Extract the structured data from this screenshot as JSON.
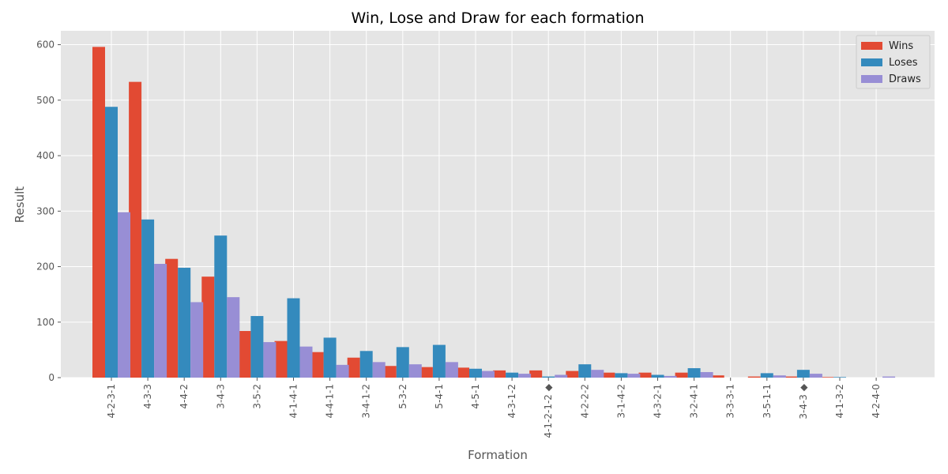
{
  "chart_data": {
    "type": "bar",
    "title": "Win, Lose and Draw for each formation",
    "xlabel": "Formation",
    "ylabel": "Result",
    "categories": [
      "4-2-3-1",
      "4-3-3",
      "4-4-2",
      "3-4-3",
      "3-5-2",
      "4-1-4-1",
      "4-4-1-1",
      "3-4-1-2",
      "5-3-2",
      "5-4-1",
      "4-5-1",
      "4-3-1-2",
      "4-1-2-1-2 ◆",
      "4-2-2-2",
      "3-1-4-2",
      "4-3-2-1",
      "3-2-4-1",
      "3-3-3-1",
      "3-5-1-1",
      "3-4-3 ◆",
      "4-1-3-2",
      "4-2-4-0"
    ],
    "series": [
      {
        "name": "Wins",
        "color": "#E24A33",
        "values": [
          596,
          533,
          214,
          182,
          84,
          66,
          46,
          36,
          21,
          19,
          18,
          13,
          13,
          12,
          9,
          9,
          9,
          4,
          2,
          2,
          1,
          0
        ]
      },
      {
        "name": "Loses",
        "color": "#348ABD",
        "values": [
          488,
          285,
          198,
          256,
          111,
          143,
          72,
          48,
          55,
          59,
          16,
          9,
          2,
          24,
          8,
          5,
          17,
          0,
          8,
          14,
          1,
          0
        ]
      },
      {
        "name": "Draws",
        "color": "#988ED5",
        "values": [
          298,
          205,
          136,
          145,
          64,
          56,
          23,
          28,
          24,
          28,
          12,
          7,
          5,
          14,
          7,
          3,
          10,
          0,
          4,
          7,
          0,
          2
        ]
      }
    ],
    "ylim": [
      0,
      625
    ],
    "yticks": [
      0,
      100,
      200,
      300,
      400,
      500,
      600
    ],
    "grid": true,
    "legend_position": "top-right"
  }
}
